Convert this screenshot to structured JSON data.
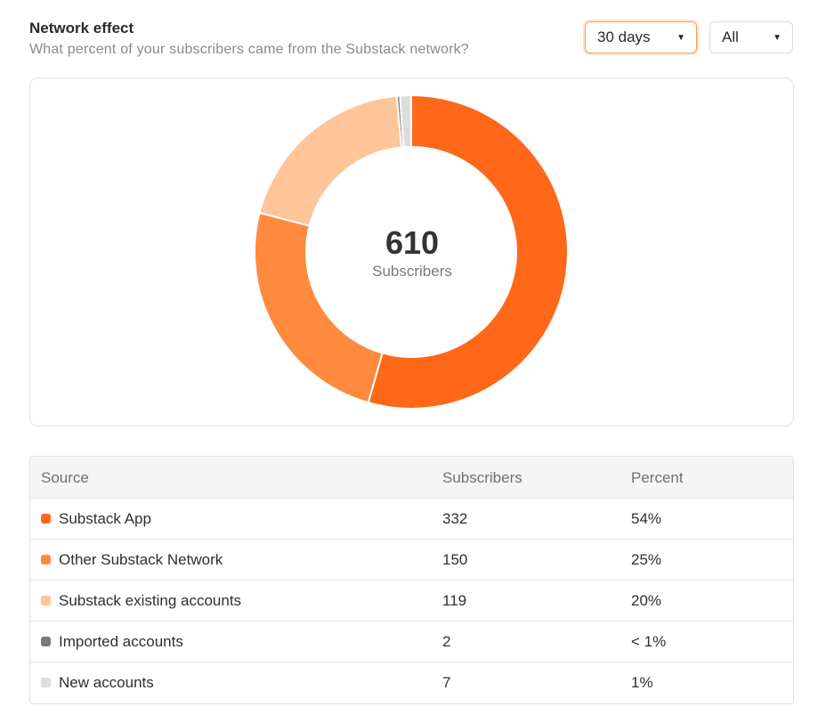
{
  "header": {
    "title": "Network effect",
    "subtitle": "What percent of your subscribers came from the Substack network?"
  },
  "filters": {
    "period": {
      "value": "30 days",
      "icon": "caret-down-icon"
    },
    "audience": {
      "value": "All",
      "icon": "caret-down-icon"
    }
  },
  "donut": {
    "total": "610",
    "total_label": "Subscribers"
  },
  "chart_data": {
    "type": "pie",
    "style": "donut",
    "categories": [
      "Substack App",
      "Other Substack Network",
      "Substack existing accounts",
      "Imported accounts",
      "New accounts"
    ],
    "values": [
      332,
      150,
      119,
      2,
      7
    ],
    "colors": [
      "#ff6719",
      "#ff8a3d",
      "#ffc499",
      "#7b7b7b",
      "#dddddd"
    ]
  },
  "table": {
    "headers": {
      "source": "Source",
      "subscribers": "Subscribers",
      "percent": "Percent"
    },
    "rows": [
      {
        "source": "Substack App",
        "subscribers": "332",
        "percent": "54%",
        "color": "#ff6719"
      },
      {
        "source": "Other Substack Network",
        "subscribers": "150",
        "percent": "25%",
        "color": "#ff8a3d"
      },
      {
        "source": "Substack existing accounts",
        "subscribers": "119",
        "percent": "20%",
        "color": "#ffc499"
      },
      {
        "source": "Imported accounts",
        "subscribers": "2",
        "percent": "< 1%",
        "color": "#7b7b7b"
      },
      {
        "source": "New accounts",
        "subscribers": "7",
        "percent": "1%",
        "color": "#dddddd"
      }
    ]
  }
}
